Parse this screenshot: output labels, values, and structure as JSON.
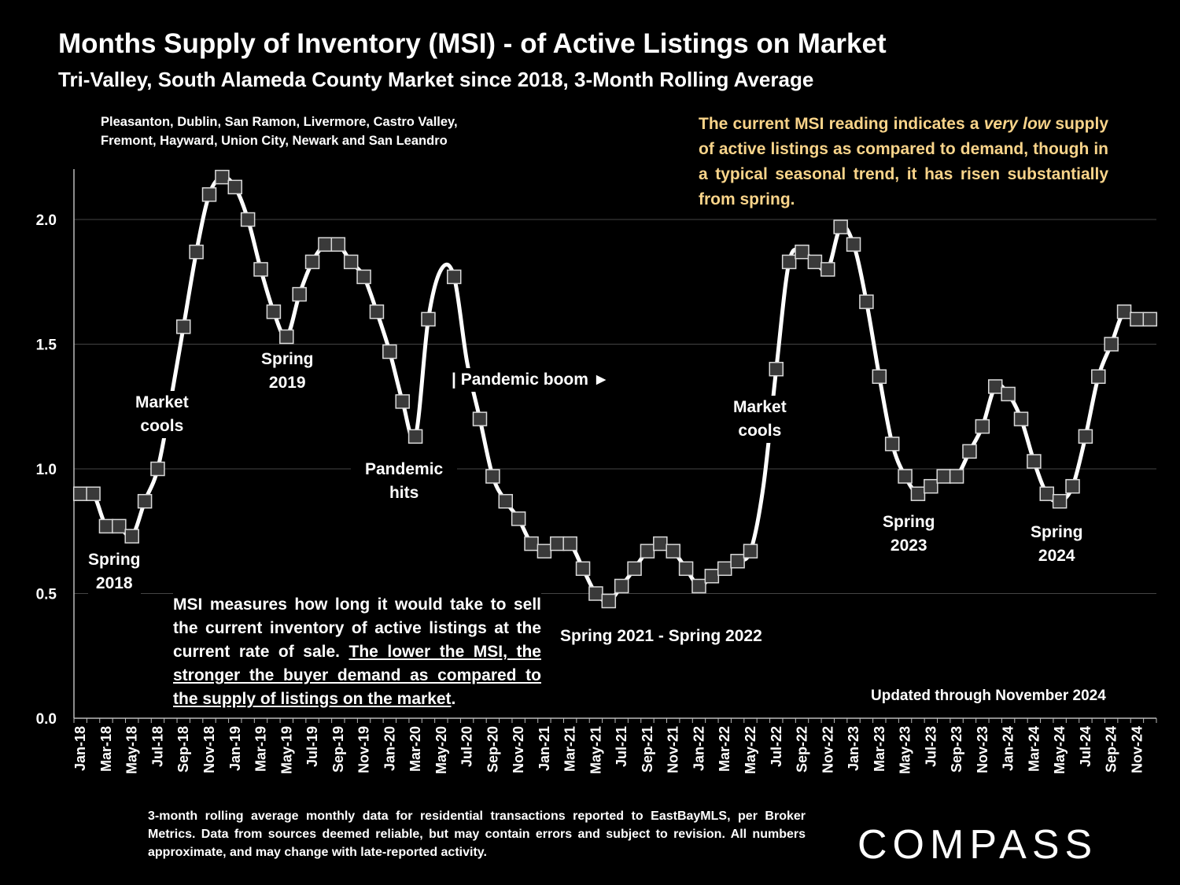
{
  "title": "Months Supply of Inventory (MSI) - of Active Listings on Market",
  "subtitle": "Tri-Valley, South Alameda County Market since 2018, 3-Month Rolling Average",
  "cities": "Pleasanton, Dublin, San Ramon, Livermore, Castro Valley, Fremont, Hayward, Union City, Newark and San Leandro",
  "callout": {
    "text_before": "The current MSI reading indicates a ",
    "text_italic": "very low",
    "text_after": " supply of active listings as compared to demand, though in a typical seasonal trend, it has risen substantially from spring.",
    "color": "#f9d48a"
  },
  "note": {
    "text_plain": "MSI measures how long it would take to sell the current inventory of active listings at the current rate of sale. ",
    "text_underlined": "The lower the MSI, the stronger the buyer demand as compared to the supply of listings on the market",
    "text_end": "."
  },
  "updated": "Updated through November 2024",
  "footnote": "3-month rolling average monthly data for residential transactions reported to EastBayMLS, per Broker Metrics. Data from sources deemed reliable, but may contain errors and subject to revision. All numbers approximate, and may change with late-reported activity.",
  "logo": "COMPASS",
  "annotations": {
    "spring2018": [
      "Spring",
      "2018"
    ],
    "market_cools_1": [
      "Market",
      "cools"
    ],
    "spring2019": [
      "Spring",
      "2019"
    ],
    "pandemic_hits": [
      "Pandemic",
      "hits"
    ],
    "pandemic_boom": "| Pandemic boom ►",
    "spring2021_2022": "Spring 2021 - Spring 2022",
    "market_cools_2": [
      "Market",
      "cools"
    ],
    "spring2023": [
      "Spring",
      "2023"
    ],
    "spring2024": [
      "Spring",
      "2024"
    ]
  },
  "chart_data": {
    "type": "line",
    "ylim": [
      0,
      2.2
    ],
    "y_ticks": [
      "0.0",
      "0.5",
      "1.0",
      "1.5",
      "2.0"
    ],
    "grid": true,
    "x_tick_labels": [
      "Jan-18",
      "Mar-18",
      "May-18",
      "Jul-18",
      "Sep-18",
      "Nov-18",
      "Jan-19",
      "Mar-19",
      "May-19",
      "Jul-19",
      "Sep-19",
      "Nov-19",
      "Jan-20",
      "Mar-20",
      "May-20",
      "Jul-20",
      "Sep-20",
      "Nov-20",
      "Jan-21",
      "Mar-21",
      "May-21",
      "Jul-21",
      "Sep-21",
      "Nov-21",
      "Jan-22",
      "Mar-22",
      "May-22",
      "Jul-22",
      "Sep-22",
      "Nov-22",
      "Jan-23",
      "Mar-23",
      "May-23",
      "Jul-23",
      "Sep-23",
      "Nov-23",
      "Jan-24",
      "Mar-24",
      "May-24",
      "Jul-24",
      "Sep-24",
      "Nov-24"
    ],
    "series": [
      {
        "color": "#ffffff",
        "marker_color": "#3a3a3a",
        "values": [
          0.9,
          0.9,
          0.77,
          0.77,
          0.73,
          0.87,
          1.0,
          1.27,
          1.57,
          1.87,
          2.1,
          2.17,
          2.13,
          2.0,
          1.8,
          1.63,
          1.53,
          1.7,
          1.83,
          1.9,
          1.9,
          1.83,
          1.77,
          1.63,
          1.47,
          1.27,
          1.13,
          1.6,
          1.8,
          1.77,
          1.43,
          1.2,
          0.97,
          0.87,
          0.8,
          0.7,
          0.67,
          0.7,
          0.7,
          0.6,
          0.5,
          0.47,
          0.53,
          0.6,
          0.67,
          0.7,
          0.67,
          0.6,
          0.53,
          0.57,
          0.6,
          0.63,
          0.67,
          0.93,
          1.4,
          1.83,
          1.87,
          1.83,
          1.8,
          1.97,
          1.9,
          1.67,
          1.37,
          1.1,
          0.97,
          0.9,
          0.93,
          0.97,
          0.97,
          1.07,
          1.17,
          1.33,
          1.3,
          1.2,
          1.03,
          0.9,
          0.87,
          0.93,
          1.13,
          1.37,
          1.5,
          1.63,
          1.6,
          1.6
        ],
        "hidden_marker_indices": [
          7,
          28,
          30,
          53
        ]
      }
    ]
  }
}
